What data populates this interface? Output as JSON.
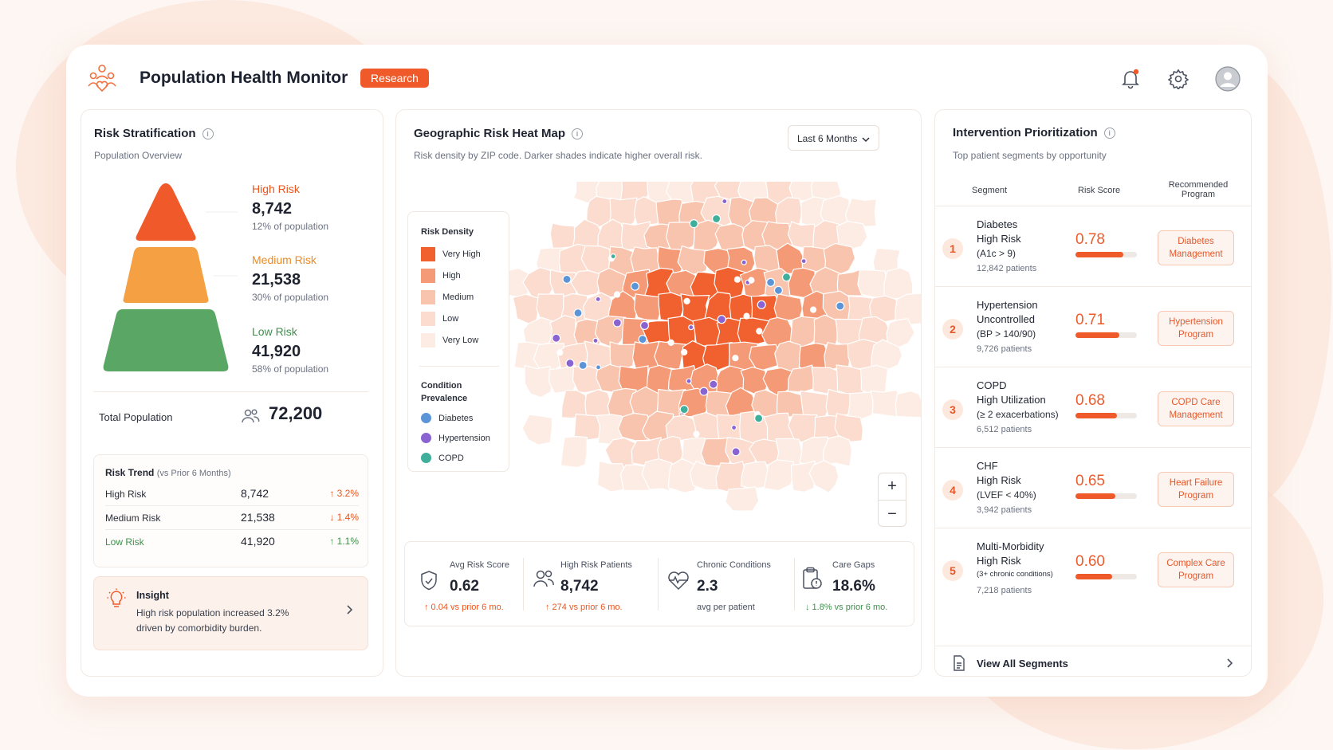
{
  "header": {
    "title": "Population Health Monitor",
    "badge": "Research",
    "icons": [
      "notification-bell-icon",
      "settings-gear-icon",
      "user-avatar-icon"
    ]
  },
  "colors": {
    "accent": "#f05a2a",
    "high": "#f05a2a",
    "medium": "#f5a043",
    "low": "#5aa765",
    "diabetes": "#5b95d8",
    "hypertension": "#8a63d2",
    "copd": "#3fae9b"
  },
  "risk": {
    "title": "Risk Stratification",
    "subtitle": "Population Overview",
    "tiers": [
      {
        "label": "High Risk",
        "value": "8,742",
        "pct": "12% of population"
      },
      {
        "label": "Medium Risk",
        "value": "21,538",
        "pct": "30% of population"
      },
      {
        "label": "Low Risk",
        "value": "41,920",
        "pct": "58% of population"
      }
    ],
    "total_label": "Total Population",
    "total_value": "72,200",
    "trend": {
      "title": "Risk Trend",
      "title_suffix": "(vs Prior 6 Months)",
      "rows": [
        {
          "name": "High Risk",
          "value": "8,742",
          "change": "↑ 3.2%"
        },
        {
          "name": "Medium Risk",
          "value": "21,538",
          "change": "↓ 1.4%"
        },
        {
          "name": "Low Risk",
          "value": "41,920",
          "change": "↑ 1.1%"
        }
      ]
    },
    "insight": {
      "title": "Insight",
      "line1": "High risk population increased 3.2%",
      "line2": "driven by comorbidity burden."
    }
  },
  "map": {
    "title": "Geographic Risk Heat Map",
    "subtitle": "Risk density by ZIP code. Darker shades indicate higher overall risk.",
    "period": "Last 6 Months",
    "legend": {
      "density_title": "Risk Density",
      "density": [
        "Very High",
        "High",
        "Medium",
        "Low",
        "Very Low"
      ],
      "density_colors": [
        "#f0612f",
        "#f59a76",
        "#f9c4ad",
        "#fbdccf",
        "#fdece4"
      ],
      "condition_title_1": "Condition",
      "condition_title_2": "Prevalence",
      "conditions": [
        "Diabetes",
        "Hypertension",
        "COPD"
      ]
    },
    "zoom_in": "+",
    "zoom_out": "−",
    "kpis": [
      {
        "label": "Avg Risk Score",
        "value": "0.62",
        "delta": "↑ 0.04 vs prior 6 mo."
      },
      {
        "label": "High Risk Patients",
        "value": "8,742",
        "delta": "↑ 274 vs prior 6 mo."
      },
      {
        "label": "Chronic Conditions",
        "value": "2.3",
        "delta": "avg per patient"
      },
      {
        "label": "Care Gaps",
        "value": "18.6%",
        "delta": "↓ 1.8% vs prior 6 mo."
      }
    ]
  },
  "intervention": {
    "title": "Intervention Prioritization",
    "subtitle": "Top patient segments by opportunity",
    "columns": [
      "Segment",
      "Risk Score",
      "Recommended",
      "Program"
    ],
    "segments": [
      {
        "rank": "1",
        "name1": "Diabetes",
        "name2": "High Risk",
        "criteria": "(A1c > 9)",
        "patients": "12,842 patients",
        "score": "0.78",
        "score_value": 0.78,
        "program1": "Diabetes",
        "program2": "Management"
      },
      {
        "rank": "2",
        "name1": "Hypertension",
        "name2": "Uncontrolled",
        "criteria": "(BP > 140/90)",
        "patients": "9,726 patients",
        "score": "0.71",
        "score_value": 0.71,
        "program1": "Hypertension",
        "program2": "Program"
      },
      {
        "rank": "3",
        "name1": "COPD",
        "name2": "High Utilization",
        "criteria": "(≥ 2 exacerbations)",
        "patients": "6,512 patients",
        "score": "0.68",
        "score_value": 0.68,
        "program1": "COPD Care",
        "program2": "Management"
      },
      {
        "rank": "4",
        "name1": "CHF",
        "name2": "High Risk",
        "criteria": "(LVEF < 40%)",
        "patients": "3,942 patients",
        "score": "0.65",
        "score_value": 0.65,
        "program1": "Heart Failure",
        "program2": "Program"
      },
      {
        "rank": "5",
        "name1": "Multi-Morbidity",
        "name2": "High Risk",
        "criteria": "(3+ chronic conditions)",
        "patients": "7,218 patients",
        "score": "0.60",
        "score_value": 0.6,
        "program1": "Complex Care",
        "program2": "Program"
      }
    ],
    "view_all": "View All Segments"
  }
}
